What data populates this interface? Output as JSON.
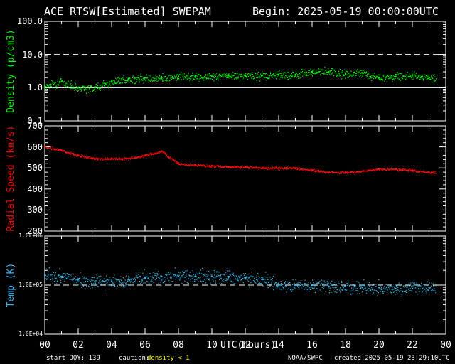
{
  "header": {
    "title_left": "ACE RTSW[Estimated] SWEPAM",
    "title_right": "Begin: 2025-05-19 00:00:00UTC"
  },
  "footer": {
    "start_doy": "start DOY: 139",
    "caution_label": "caution:",
    "caution_value": "density < 1",
    "caution_color": "#ffff00",
    "agency": "NOAA/SWPC",
    "created": "created:2025-05-19 23:29:10UTC"
  },
  "chart_data": [
    {
      "type": "scatter",
      "name": "density",
      "ylabel": "Density (p/cm3)",
      "ylabel_color": "#00ff00",
      "color": "#00ff00",
      "scale": "log",
      "ylim": [
        0.1,
        100
      ],
      "yticks": [
        "100.0",
        "10.0",
        "1.0",
        "0.1"
      ],
      "ref_lines": [
        {
          "value": 10,
          "style": "dashed"
        },
        {
          "value": 1,
          "style": "solid"
        }
      ],
      "x": [
        0,
        1,
        2,
        3,
        4,
        5,
        6,
        7,
        8,
        9,
        10,
        11,
        12,
        13,
        14,
        15,
        16,
        17,
        18,
        19,
        20,
        21,
        22,
        23
      ],
      "y": [
        1.1,
        1.5,
        1.0,
        1.0,
        1.5,
        1.8,
        2.0,
        2.0,
        2.2,
        2.2,
        2.2,
        2.3,
        2.3,
        2.3,
        2.4,
        2.5,
        3.0,
        3.0,
        2.6,
        2.8,
        2.0,
        2.2,
        2.4,
        2.0
      ],
      "scatter_log10": 0.18
    },
    {
      "type": "scatter",
      "name": "speed",
      "ylabel": "Radial Speed (km/s)",
      "ylabel_color": "#ff0000",
      "color": "#ff1010",
      "scale": "linear",
      "ylim": [
        200,
        700
      ],
      "yticks": [
        "700",
        "600",
        "500",
        "400",
        "300",
        "200"
      ],
      "x": [
        0,
        1,
        2,
        3,
        4,
        5,
        6,
        7,
        8,
        9,
        10,
        11,
        12,
        13,
        14,
        15,
        16,
        17,
        18,
        19,
        20,
        21,
        22,
        23
      ],
      "y": [
        600,
        585,
        560,
        545,
        545,
        545,
        560,
        580,
        520,
        515,
        510,
        505,
        505,
        500,
        500,
        500,
        490,
        480,
        480,
        485,
        495,
        495,
        490,
        480
      ],
      "scatter": 9
    },
    {
      "type": "scatter",
      "name": "temperature",
      "ylabel": "Temp (K)",
      "ylabel_color": "#33bbff",
      "color": "#33bbee",
      "scale": "log",
      "ylim": [
        10000,
        1000000
      ],
      "yticks": [
        "1.0E+06",
        "1.0E+05",
        "1.0E+04"
      ],
      "ref_lines": [
        {
          "value": 100000,
          "style": "dashed"
        }
      ],
      "x": [
        0,
        1,
        2,
        3,
        4,
        5,
        6,
        7,
        8,
        9,
        10,
        11,
        12,
        13,
        14,
        15,
        16,
        17,
        18,
        19,
        20,
        21,
        22,
        23
      ],
      "y": [
        160000,
        150000,
        130000,
        120000,
        120000,
        130000,
        140000,
        150000,
        150000,
        150000,
        150000,
        150000,
        140000,
        130000,
        100000,
        100000,
        100000,
        95000,
        95000,
        90000,
        90000,
        85000,
        85000,
        90000
      ],
      "scatter_log10": 0.2
    }
  ],
  "x_axis": {
    "label": "UTC(hours)",
    "ticks": [
      "00",
      "02",
      "04",
      "06",
      "08",
      "10",
      "12",
      "14",
      "16",
      "18",
      "20",
      "22",
      "00"
    ],
    "range": [
      0,
      24
    ]
  }
}
